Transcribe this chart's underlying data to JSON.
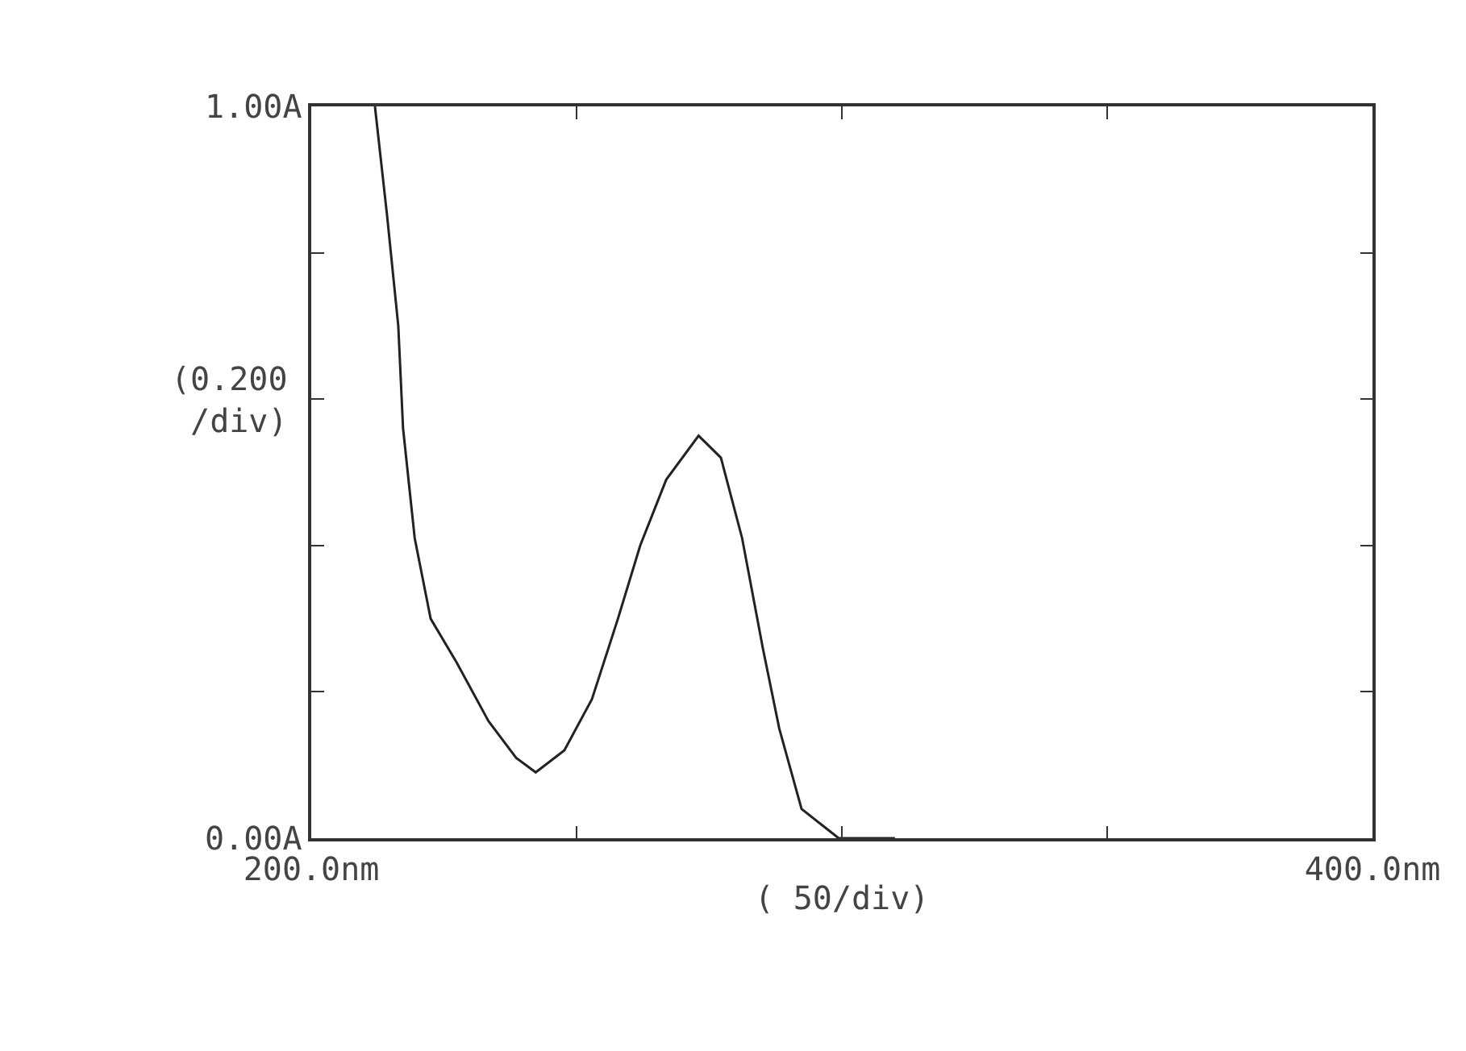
{
  "chart_data": {
    "type": "line",
    "xlabel": "( 50/div)",
    "ylabel": "(0.200\n/div)",
    "x": [
      212,
      214.3,
      216.4,
      217.3,
      219.5,
      222.5,
      227.4,
      233.4,
      238.6,
      242.3,
      247.7,
      252.9,
      257.8,
      262,
      266.9,
      273,
      277.2,
      281.2,
      285.1,
      288.2,
      292.4,
      299.4,
      310
    ],
    "series": [
      {
        "color": "#222222",
        "values": [
          1.0,
          0.85,
          0.7,
          0.56,
          0.41,
          0.3,
          0.24,
          0.16,
          0.11,
          0.09,
          0.12,
          0.19,
          0.3,
          0.4,
          0.49,
          0.55,
          0.52,
          0.41,
          0.26,
          0.15,
          0.04,
          0,
          0
        ]
      }
    ],
    "xlim": [
      200,
      400
    ],
    "xticks": [
      {
        "value": 200,
        "label": "200.0nm"
      },
      {
        "value": 250,
        "label": null
      },
      {
        "value": 300,
        "label": null
      },
      {
        "value": 350,
        "label": null
      },
      {
        "value": 400,
        "label": "400.0nm"
      }
    ],
    "ylim": [
      0,
      1
    ],
    "yticks": [
      {
        "value": 0,
        "label": "0.00A"
      },
      {
        "value": 0.2,
        "label": null
      },
      {
        "value": 0.4,
        "label": null
      },
      {
        "value": 0.6,
        "label": null
      },
      {
        "value": 0.8,
        "label": null
      },
      {
        "value": 1,
        "label": "1.00A"
      }
    ],
    "marker": "none",
    "line_style": "solid"
  }
}
